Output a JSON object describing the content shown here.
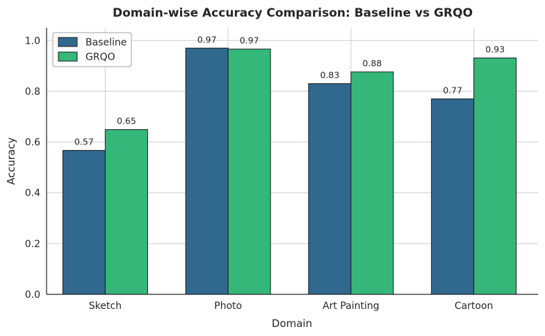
{
  "chart_data": {
    "type": "bar",
    "title": "Domain-wise Accuracy Comparison: Baseline vs GRQO",
    "xlabel": "Domain",
    "ylabel": "Accuracy",
    "categories": [
      "Sketch",
      "Photo",
      "Art Painting",
      "Cartoon"
    ],
    "series": [
      {
        "name": "Baseline",
        "color": "#31688e",
        "values": [
          0.567,
          0.97,
          0.83,
          0.77
        ],
        "labels": [
          "0.57",
          "0.97",
          "0.83",
          "0.77"
        ]
      },
      {
        "name": "GRQO",
        "color": "#35b779",
        "values": [
          0.649,
          0.966,
          0.876,
          0.931
        ],
        "labels": [
          "0.65",
          "0.97",
          "0.88",
          "0.93"
        ]
      }
    ],
    "ylim": [
      0,
      1.05
    ],
    "yticks": [
      0.0,
      0.2,
      0.4,
      0.6,
      0.8,
      1.0
    ],
    "ytick_labels": [
      "0.0",
      "0.2",
      "0.4",
      "0.6",
      "0.8",
      "1.0"
    ],
    "grid": true,
    "legend_position": "top-left"
  }
}
